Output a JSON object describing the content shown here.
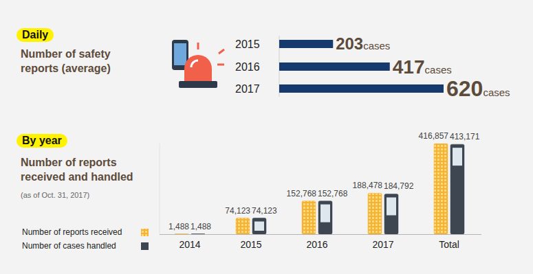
{
  "chart_data": [
    {
      "type": "bar",
      "orientation": "horizontal",
      "title": "Daily",
      "subtitle": "Number of safety reports (average)",
      "categories": [
        "2015",
        "2016",
        "2017"
      ],
      "values": [
        203,
        417,
        620
      ],
      "value_labels": [
        "203cases",
        "417cases",
        "620cases"
      ],
      "color": "#163a6e",
      "xlim": [
        0,
        620
      ],
      "data_labels": true,
      "tick_labels": "y",
      "grid": false
    },
    {
      "type": "bar",
      "title": "By year",
      "subtitle": "Number of reports received and handled",
      "annotations": [
        "(as of Oct. 31, 2017)"
      ],
      "categories": [
        "2014",
        "2015",
        "2016",
        "2017",
        "Total"
      ],
      "series": [
        {
          "name": "Number of reports received",
          "color": "#f5b335",
          "values": [
            1488,
            74123,
            152768,
            188478,
            416857
          ],
          "value_labels": [
            "1,488",
            "74,123",
            "152,768",
            "188,478",
            "416,857"
          ]
        },
        {
          "name": "Number of cases handled",
          "color": "#3d4651",
          "values": [
            1488,
            74123,
            152768,
            184792,
            413171
          ],
          "value_labels": [
            "1,488",
            "74,123",
            "152,768",
            "184,792",
            "413,171"
          ]
        }
      ],
      "ylim": [
        0,
        416857
      ],
      "data_labels": true,
      "tick_labels": "x",
      "legend": "lower left",
      "grid": false
    }
  ]
}
